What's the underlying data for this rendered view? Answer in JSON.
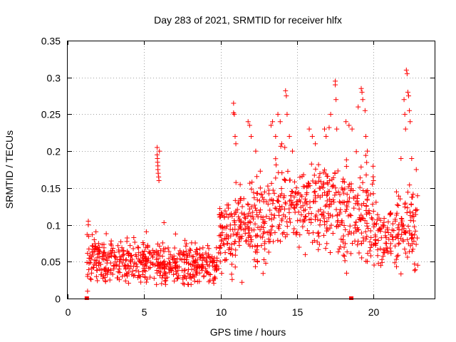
{
  "chart_data": {
    "type": "scatter",
    "title": "Day 283 of 2021, SRMTID for receiver hlfx",
    "xlabel": "GPS time / hours",
    "ylabel": "SRMTID / TECUs",
    "xlim": [
      0,
      24
    ],
    "ylim": [
      0,
      0.35
    ],
    "xticks": [
      0,
      5,
      10,
      15,
      20
    ],
    "xtick_labels": [
      "0",
      "5",
      "10",
      "15",
      "20"
    ],
    "yticks": [
      0,
      0.05,
      0.1,
      0.15,
      0.2,
      0.25,
      0.3,
      0.35
    ],
    "ytick_labels": [
      "0",
      "0.05",
      "0.1",
      "0.15",
      "0.2",
      "0.25",
      "0.3",
      "0.35"
    ],
    "grid": true,
    "marker": "plus",
    "color": "#ff0000",
    "zero_markers": [
      {
        "x": 1.25,
        "y": 0
      },
      {
        "x": 18.55,
        "y": 0
      }
    ],
    "segments": [
      {
        "x_start": 1.25,
        "x_end": 2.0,
        "center": 0.055,
        "spread": 0.02,
        "n": 50
      },
      {
        "x_start": 2.0,
        "x_end": 5.6,
        "center": 0.048,
        "spread": 0.018,
        "n": 220
      },
      {
        "x_start": 5.6,
        "x_end": 6.1,
        "center": 0.05,
        "spread": 0.018,
        "n": 30
      },
      {
        "x_start": 6.1,
        "x_end": 9.9,
        "center": 0.045,
        "spread": 0.018,
        "n": 230
      },
      {
        "x_start": 9.9,
        "x_end": 11.0,
        "center": 0.085,
        "spread": 0.03,
        "n": 80
      },
      {
        "x_start": 11.0,
        "x_end": 13.5,
        "center": 0.105,
        "spread": 0.035,
        "n": 160
      },
      {
        "x_start": 13.5,
        "x_end": 17.5,
        "center": 0.125,
        "spread": 0.035,
        "n": 230
      },
      {
        "x_start": 17.5,
        "x_end": 20.0,
        "center": 0.115,
        "spread": 0.04,
        "n": 160
      },
      {
        "x_start": 20.0,
        "x_end": 21.5,
        "center": 0.085,
        "spread": 0.025,
        "n": 80
      },
      {
        "x_start": 21.5,
        "x_end": 22.9,
        "center": 0.095,
        "spread": 0.035,
        "n": 90
      }
    ],
    "points": [
      [
        1.35,
        0.105
      ],
      [
        1.35,
        0.1
      ],
      [
        1.3,
        0.01
      ],
      [
        1.3,
        0.03
      ],
      [
        5.85,
        0.205
      ],
      [
        5.85,
        0.195
      ],
      [
        5.87,
        0.19
      ],
      [
        5.88,
        0.185
      ],
      [
        5.9,
        0.18
      ],
      [
        5.9,
        0.175
      ],
      [
        5.92,
        0.17
      ],
      [
        5.95,
        0.165
      ],
      [
        5.97,
        0.16
      ],
      [
        6.0,
        0.2
      ],
      [
        6.3,
        0.103
      ],
      [
        10.85,
        0.265
      ],
      [
        10.85,
        0.252
      ],
      [
        10.9,
        0.25
      ],
      [
        10.95,
        0.22
      ],
      [
        11.0,
        0.21
      ],
      [
        11.4,
        0.022
      ],
      [
        11.8,
        0.24
      ],
      [
        11.9,
        0.235
      ],
      [
        12.0,
        0.22
      ],
      [
        12.3,
        0.2
      ],
      [
        13.3,
        0.235
      ],
      [
        13.4,
        0.24
      ],
      [
        13.6,
        0.22
      ],
      [
        13.75,
        0.25
      ],
      [
        13.9,
        0.24
      ],
      [
        14.0,
        0.21
      ],
      [
        14.2,
        0.205
      ],
      [
        14.25,
        0.282
      ],
      [
        14.3,
        0.275
      ],
      [
        14.35,
        0.25
      ],
      [
        14.5,
        0.22
      ],
      [
        14.7,
        0.2
      ],
      [
        15.8,
        0.23
      ],
      [
        16.0,
        0.22
      ],
      [
        16.2,
        0.21
      ],
      [
        16.8,
        0.23
      ],
      [
        16.9,
        0.22
      ],
      [
        17.1,
        0.232
      ],
      [
        17.2,
        0.25
      ],
      [
        17.5,
        0.295
      ],
      [
        17.5,
        0.29
      ],
      [
        17.55,
        0.27
      ],
      [
        17.6,
        0.23
      ],
      [
        18.2,
        0.24
      ],
      [
        18.4,
        0.235
      ],
      [
        18.6,
        0.23
      ],
      [
        19.0,
        0.26
      ],
      [
        19.2,
        0.285
      ],
      [
        19.25,
        0.28
      ],
      [
        19.3,
        0.27
      ],
      [
        19.45,
        0.255
      ],
      [
        19.5,
        0.22
      ],
      [
        19.6,
        0.2
      ],
      [
        20.0,
        0.16
      ],
      [
        22.0,
        0.27
      ],
      [
        22.05,
        0.25
      ],
      [
        22.1,
        0.23
      ],
      [
        22.15,
        0.31
      ],
      [
        22.2,
        0.305
      ],
      [
        22.25,
        0.28
      ],
      [
        22.3,
        0.275
      ],
      [
        22.35,
        0.255
      ],
      [
        22.4,
        0.24
      ],
      [
        22.5,
        0.19
      ],
      [
        22.8,
        0.175
      ],
      [
        21.8,
        0.19
      ]
    ]
  }
}
